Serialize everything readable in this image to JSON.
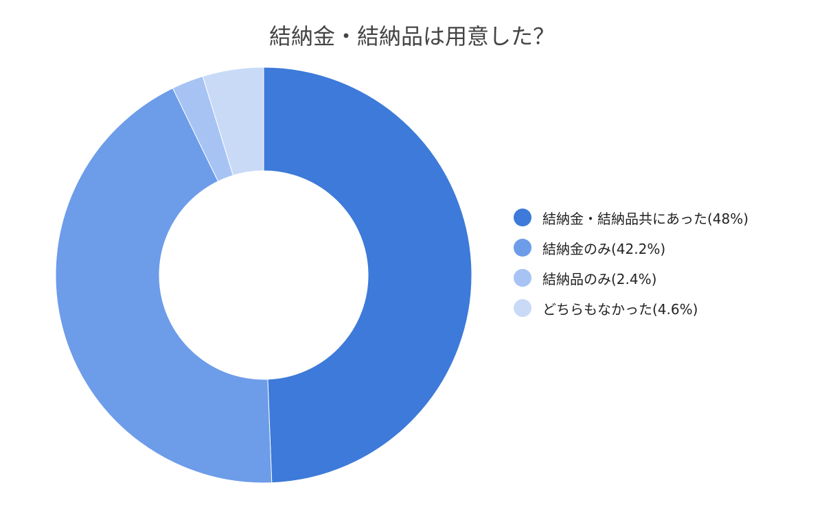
{
  "chart_data": {
    "type": "pie",
    "variant": "donut",
    "title": "結納金・結納品は用意した？",
    "legend_position": "right",
    "slices": [
      {
        "label": "結納金・結納品共にあった(48%)",
        "value": 48.0,
        "color": "#3d7ad9"
      },
      {
        "label": "結納金のみ(42.2%)",
        "value": 42.2,
        "color": "#6d9ce9"
      },
      {
        "label": "結納品のみ(2.4%)",
        "value": 2.4,
        "color": "#a6c3f3"
      },
      {
        "label": "どちらもなかった(4.6%)",
        "value": 4.6,
        "color": "#c9daf7"
      }
    ]
  }
}
